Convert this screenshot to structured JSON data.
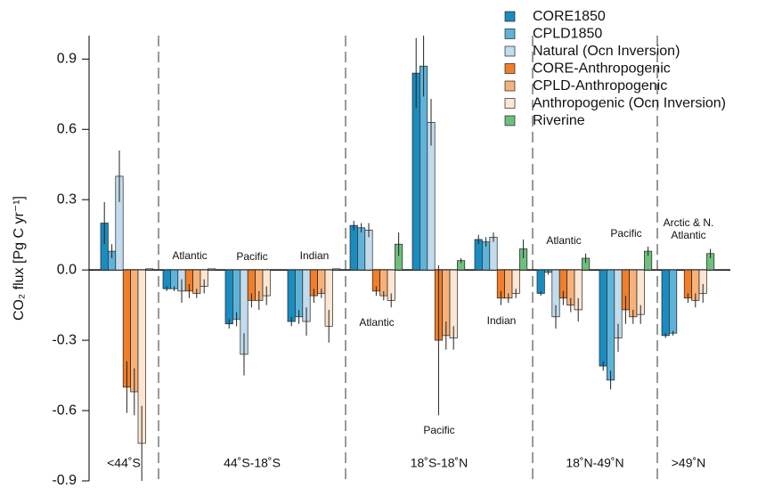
{
  "chart_data": {
    "type": "bar",
    "ylabel": "CO₂ flux [Pg C yr⁻¹]",
    "ylim": [
      -0.9,
      1.0
    ],
    "yticks": [
      -0.9,
      -0.6,
      -0.3,
      {
        "value": 0,
        "label": "0.0"
      },
      0.3,
      0.6,
      0.9
    ],
    "regions": [
      {
        "label": "<44˚S",
        "basins": [
          null
        ]
      },
      {
        "label": "44˚S-18˚S",
        "basins": [
          "Atlantic",
          "Pacific",
          "Indian"
        ]
      },
      {
        "label": "18˚S-18˚N",
        "basins": [
          "Atlantic",
          "Pacific",
          "Indian"
        ]
      },
      {
        "label": "18˚N-49˚N",
        "basins": [
          "Atlantic",
          "Pacific"
        ]
      },
      {
        "label": ">49˚N",
        "basins": [
          "Arctic & N. Atlantic"
        ]
      }
    ],
    "series": [
      {
        "name": "CORE1850",
        "color": "#1a8cbf",
        "values": [
          0.2,
          -0.08,
          -0.23,
          -0.22,
          0.19,
          0.84,
          0.13,
          -0.1,
          -0.41,
          -0.28
        ],
        "errors": [
          0.09,
          0.01,
          0.02,
          0.02,
          0.02,
          0.15,
          0.02,
          0.01,
          0.02,
          0.01
        ]
      },
      {
        "name": "CPLD1850",
        "color": "#5fb3d9",
        "values": [
          0.08,
          -0.08,
          -0.21,
          -0.2,
          0.18,
          0.87,
          0.12,
          -0.01,
          -0.47,
          -0.27
        ],
        "errors": [
          0.03,
          0.01,
          0.03,
          0.03,
          0.02,
          0.13,
          0.02,
          0.01,
          0.04,
          0.01
        ]
      },
      {
        "name": "Natural (Ocn Inversion)",
        "color": "#c2dced",
        "values": [
          0.4,
          -0.09,
          -0.36,
          -0.22,
          0.17,
          0.63,
          0.14,
          -0.2,
          -0.29,
          null
        ],
        "errors": [
          0.11,
          0.05,
          0.09,
          0.06,
          0.03,
          0.1,
          0.02,
          0.05,
          0.06,
          null
        ]
      },
      {
        "name": "CORE-Anthropogenic",
        "color": "#f07e2b",
        "values": [
          -0.5,
          -0.09,
          -0.13,
          -0.11,
          -0.09,
          -0.3,
          -0.12,
          -0.12,
          -0.17,
          -0.12
        ],
        "errors": [
          0.11,
          0.03,
          0.03,
          0.03,
          0.02,
          0.32,
          0.03,
          0.03,
          0.06,
          0.02
        ]
      },
      {
        "name": "CPLD-Anthropogenic",
        "color": "#f7b27a",
        "values": [
          -0.52,
          -0.1,
          -0.13,
          -0.1,
          -0.11,
          -0.28,
          -0.12,
          -0.15,
          -0.2,
          -0.13
        ],
        "errors": [
          0.1,
          0.02,
          0.04,
          0.02,
          0.02,
          0.06,
          0.02,
          0.03,
          0.03,
          0.03
        ]
      },
      {
        "name": "Anthropogenic (Ocn Inversion)",
        "color": "#fde6d2",
        "values": [
          -0.74,
          -0.07,
          -0.11,
          -0.24,
          -0.13,
          -0.29,
          -0.1,
          -0.17,
          -0.19,
          -0.1
        ],
        "errors": [
          0.16,
          0.03,
          0.04,
          0.07,
          0.03,
          0.05,
          0.02,
          0.05,
          0.04,
          0.04
        ]
      },
      {
        "name": "Riverine",
        "color": "#6fbf7f",
        "values": [
          0.005,
          0.005,
          0,
          0.005,
          0.11,
          0.04,
          0.09,
          0.05,
          0.08,
          0.07
        ],
        "errors": [
          null,
          null,
          null,
          null,
          0.05,
          0.01,
          0.04,
          0.02,
          0.02,
          0.02
        ]
      }
    ]
  }
}
